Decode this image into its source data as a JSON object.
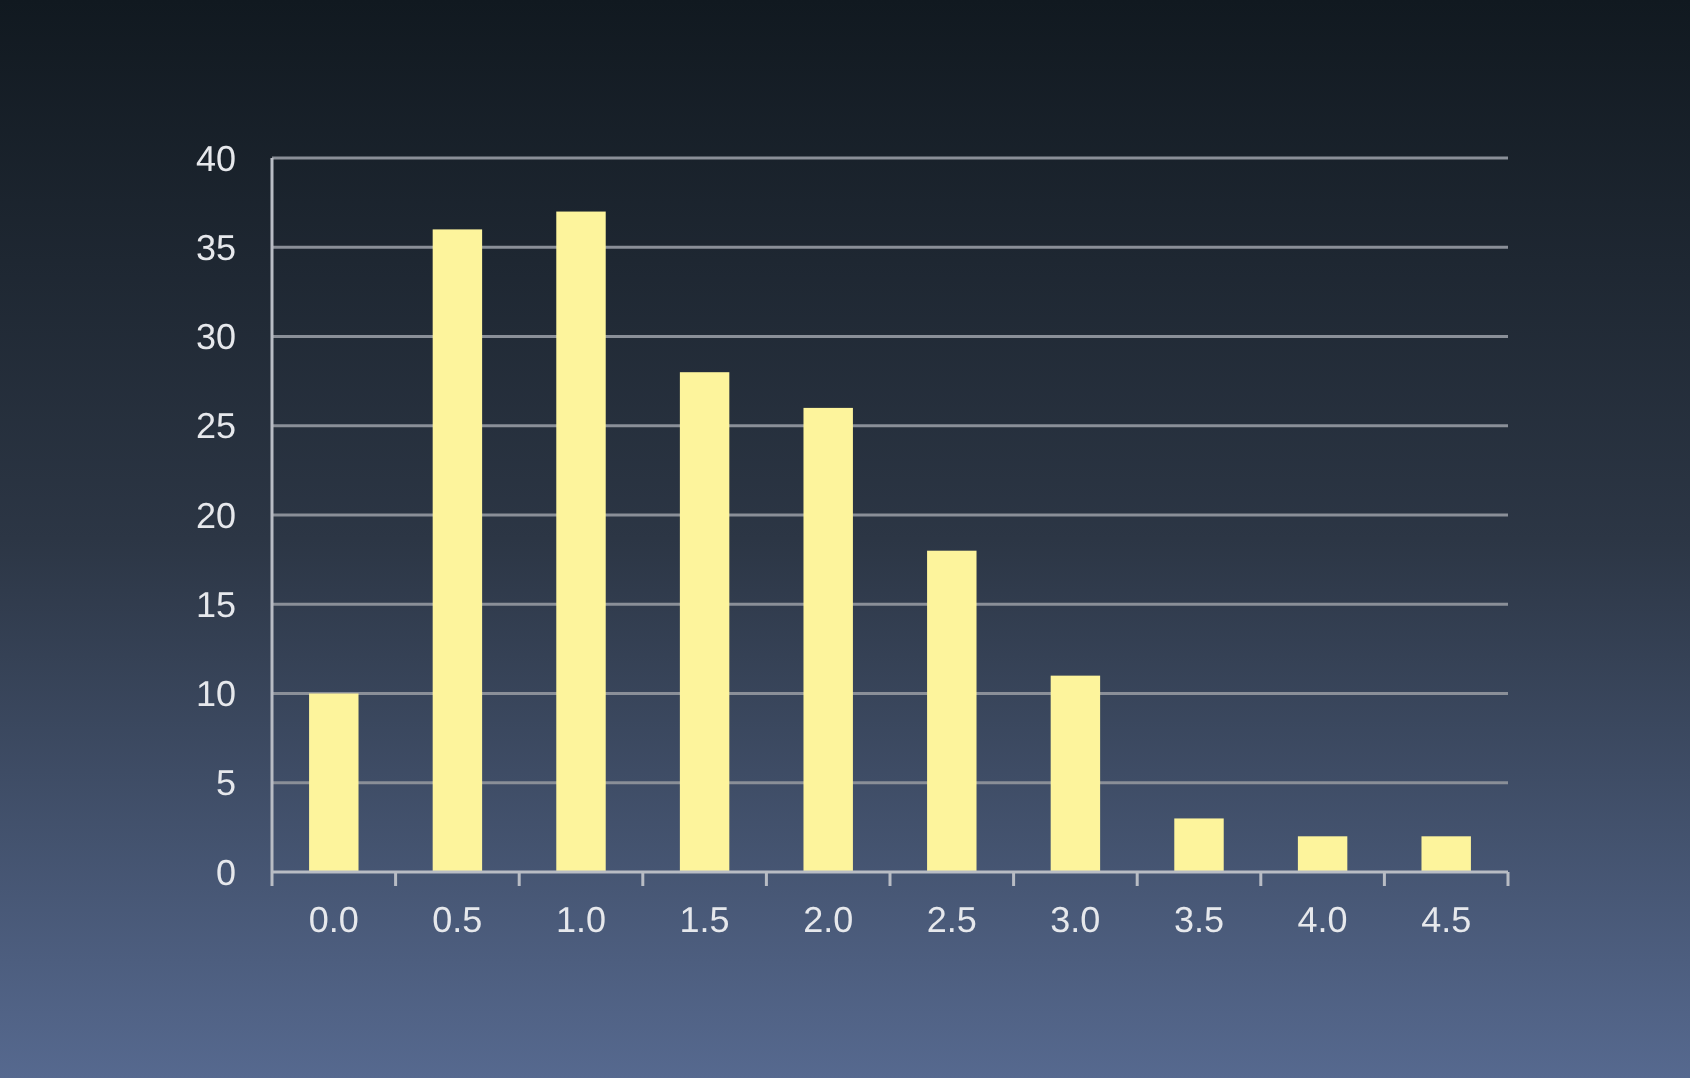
{
  "chart_data": {
    "type": "bar",
    "categories": [
      "0.0",
      "0.5",
      "1.0",
      "1.5",
      "2.0",
      "2.5",
      "3.0",
      "3.5",
      "4.0",
      "4.5"
    ],
    "values": [
      10,
      36,
      37,
      28,
      26,
      18,
      11,
      3,
      2,
      2
    ],
    "color": "#fdf49c",
    "ylim": [
      0,
      40
    ],
    "yticks": [
      0,
      5,
      10,
      15,
      20,
      25,
      30,
      35,
      40
    ],
    "grid": "y"
  }
}
